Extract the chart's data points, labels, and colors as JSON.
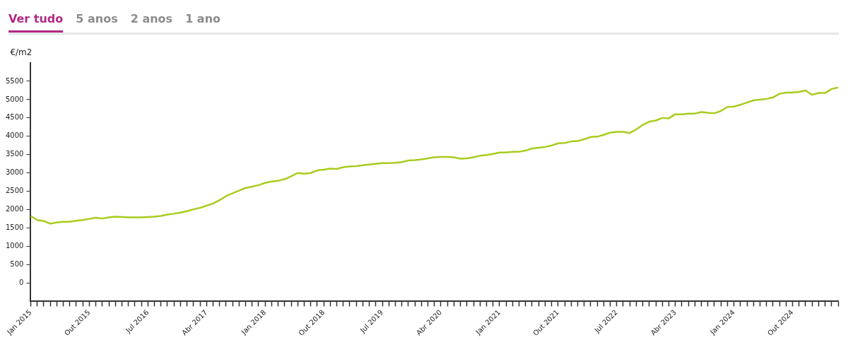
{
  "chart_data": {
    "type": "line",
    "annotations": [
      "Ver tudo",
      "5 anos",
      "2 anos",
      "1 ano"
    ],
    "ylabel": "€/m2",
    "categories": [
      "Jan 2015",
      null,
      null,
      null,
      null,
      null,
      null,
      null,
      null,
      "Out 2015",
      null,
      null,
      null,
      null,
      null,
      null,
      null,
      null,
      "Jul 2016",
      null,
      null,
      null,
      null,
      null,
      null,
      null,
      null,
      "Abr 2017",
      null,
      null,
      null,
      null,
      null,
      null,
      null,
      null,
      "Jan 2018",
      null,
      null,
      null,
      null,
      null,
      null,
      null,
      null,
      "Out 2018",
      null,
      null,
      null,
      null,
      null,
      null,
      null,
      null,
      "Jul 2019",
      null,
      null,
      null,
      null,
      null,
      null,
      null,
      null,
      "Abr 2020",
      null,
      null,
      null,
      null,
      null,
      null,
      null,
      null,
      "Jan 2021",
      null,
      null,
      null,
      null,
      null,
      null,
      null,
      null,
      "Out 2021",
      null,
      null,
      null,
      null,
      null,
      null,
      null,
      null,
      "Jul 2022",
      null,
      null,
      null,
      null,
      null,
      null,
      null,
      null,
      "Abr 2023",
      null,
      null,
      null,
      null,
      null,
      null,
      null,
      null,
      "Jan 2024",
      null,
      null,
      null,
      null,
      null,
      null,
      null,
      null,
      "Out 2024",
      null,
      null,
      null,
      null,
      null,
      null,
      null
    ],
    "series": [
      {
        "color": "#a8cc1e",
        "values": [
          1830,
          1720,
          1690,
          1620,
          1650,
          1670,
          1670,
          1700,
          1720,
          1750,
          1780,
          1760,
          1790,
          1810,
          1800,
          1790,
          1790,
          1790,
          1800,
          1810,
          1830,
          1870,
          1890,
          1920,
          1960,
          2010,
          2050,
          2110,
          2170,
          2260,
          2370,
          2450,
          2520,
          2590,
          2630,
          2670,
          2730,
          2770,
          2790,
          2830,
          2910,
          3000,
          2980,
          3000,
          3070,
          3090,
          3120,
          3110,
          3160,
          3180,
          3190,
          3210,
          3230,
          3250,
          3270,
          3270,
          3280,
          3300,
          3340,
          3350,
          3370,
          3400,
          3430,
          3440,
          3440,
          3430,
          3390,
          3400,
          3430,
          3470,
          3490,
          3520,
          3560,
          3560,
          3580,
          3580,
          3610,
          3670,
          3690,
          3710,
          3750,
          3810,
          3820,
          3860,
          3870,
          3920,
          3980,
          3990,
          4040,
          4100,
          4120,
          4120,
          4090,
          4190,
          4310,
          4400,
          4430,
          4500,
          4490,
          4600,
          4600,
          4620,
          4620,
          4660,
          4640,
          4630,
          4690,
          4800,
          4810,
          4860,
          4920,
          4980,
          5000,
          5020,
          5060,
          5160,
          5190,
          5190,
          5210,
          5250,
          5130,
          5180,
          5180,
          5290,
          5330
        ]
      }
    ],
    "ylim": [
      -500,
      6000
    ],
    "yticks": [
      0,
      500,
      1000,
      1500,
      2000,
      2500,
      3000,
      3500,
      4000,
      4500,
      5000,
      5500
    ],
    "grid": false,
    "legend": false
  }
}
